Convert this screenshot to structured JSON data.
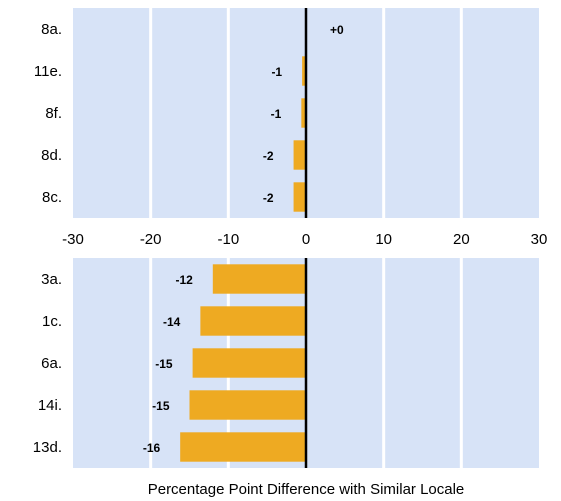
{
  "chart_data": [
    {
      "type": "bar",
      "orientation": "horizontal",
      "categories": [
        "8a.",
        "11e.",
        "8f.",
        "8d.",
        "8c."
      ],
      "values": [
        0,
        -0.5,
        -0.6,
        -1.6,
        -1.6
      ],
      "data_labels": [
        "+0",
        "-1",
        "-1",
        "-2",
        "-2"
      ],
      "xlim": [
        -30,
        30
      ],
      "grid": true,
      "bar_color": "#eeaa22",
      "plot_background": "#d7e3f7"
    },
    {
      "type": "bar",
      "orientation": "horizontal",
      "categories": [
        "3a.",
        "1c.",
        "6a.",
        "14i.",
        "13d."
      ],
      "values": [
        -12,
        -13.6,
        -14.6,
        -15,
        -16.2
      ],
      "data_labels": [
        "-12",
        "-14",
        "-15",
        "-15",
        "-16"
      ],
      "xlim": [
        -30,
        30
      ],
      "grid": true,
      "bar_color": "#eeaa22",
      "plot_background": "#d7e3f7"
    }
  ],
  "axis": {
    "ticks": [
      -30,
      -20,
      -10,
      0,
      10,
      20,
      30
    ],
    "tick_labels": [
      "-30",
      "-20",
      "-10",
      "0",
      "10",
      "20",
      "30"
    ],
    "xlabel": "Percentage Point Difference with Similar Locale"
  },
  "colors": {
    "bar": "#eeaa22",
    "plot_background": "#d7e3f7",
    "gridline": "#ffffff",
    "zero_line": "#000000"
  }
}
